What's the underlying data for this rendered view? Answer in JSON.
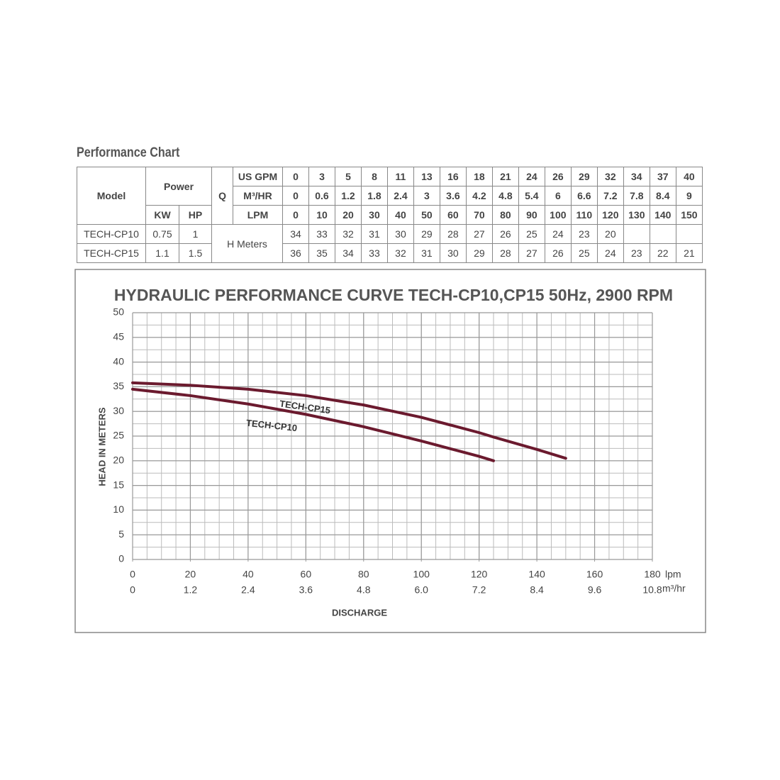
{
  "table": {
    "title": "Performance Chart",
    "headers": {
      "model": "Model",
      "power": "Power",
      "kw": "KW",
      "hp": "HP",
      "q": "Q",
      "head": "H Meters"
    },
    "flow": [
      {
        "unit": "US GPM",
        "values": [
          "0",
          "3",
          "5",
          "8",
          "11",
          "13",
          "16",
          "18",
          "21",
          "24",
          "26",
          "29",
          "32",
          "34",
          "37",
          "40"
        ]
      },
      {
        "unit": "M³/HR",
        "values": [
          "0",
          "0.6",
          "1.2",
          "1.8",
          "2.4",
          "3",
          "3.6",
          "4.2",
          "4.8",
          "5.4",
          "6",
          "6.6",
          "7.2",
          "7.8",
          "8.4",
          "9"
        ]
      },
      {
        "unit": "LPM",
        "values": [
          "0",
          "10",
          "20",
          "30",
          "40",
          "50",
          "60",
          "70",
          "80",
          "90",
          "100",
          "110",
          "120",
          "130",
          "140",
          "150"
        ]
      }
    ],
    "rows": [
      {
        "model": "TECH-CP10",
        "kw": "0.75",
        "hp": "1",
        "values": [
          "34",
          "33",
          "32",
          "31",
          "30",
          "29",
          "28",
          "27",
          "26",
          "25",
          "24",
          "23",
          "20"
        ]
      },
      {
        "model": "TECH-CP15",
        "kw": "1.1",
        "hp": "1.5",
        "values": [
          "36",
          "35",
          "34",
          "33",
          "32",
          "31",
          "30",
          "29",
          "28",
          "27",
          "26",
          "25",
          "24",
          "23",
          "22",
          "21"
        ]
      }
    ]
  },
  "chart_data": {
    "type": "line",
    "title": "HYDRAULIC PERFORMANCE CURVE TECH-CP10,CP15 50Hz, 2900 RPM",
    "x_label": "DISCHARGE",
    "y_label": "HEAD IN METERS",
    "x_unit": "lpm",
    "x2_unit": "m³/hr",
    "x": [
      0,
      20,
      40,
      60,
      80,
      100,
      120,
      125,
      140,
      150
    ],
    "series": [
      {
        "name": "TECH-CP15",
        "color": "#6b1a2e",
        "values": [
          35.8,
          35.3,
          34.5,
          33.2,
          31.3,
          28.8,
          25.7,
          24.8,
          22.3,
          20.5
        ]
      },
      {
        "name": "TECH-CP10",
        "color": "#6b1a2e",
        "values": [
          34.5,
          33.2,
          31.5,
          29.4,
          26.9,
          24.0,
          20.9,
          20.0,
          null,
          null
        ]
      }
    ],
    "xlim": [
      0,
      180
    ],
    "xticks": [
      0,
      20,
      40,
      60,
      80,
      100,
      120,
      140,
      160,
      180
    ],
    "x2lim": [
      0,
      10.8
    ],
    "x2ticks": [
      0,
      1.2,
      2.4,
      3.6,
      4.8,
      {
        "value": 6,
        "label": "6.0"
      },
      7.2,
      8.4,
      9.6,
      10.8
    ],
    "ylim": [
      0,
      50
    ],
    "yticks": [
      0,
      5,
      10,
      15,
      20,
      25,
      30,
      35,
      40,
      45,
      50
    ],
    "grid": true,
    "minor_grid": {
      "x": 5,
      "y": 2.5
    }
  }
}
